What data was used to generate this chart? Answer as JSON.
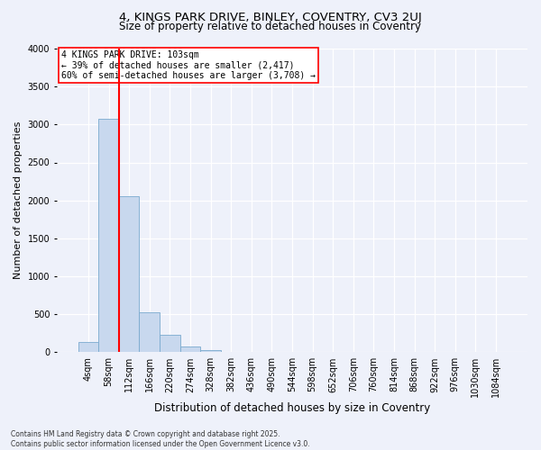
{
  "title_line1": "4, KINGS PARK DRIVE, BINLEY, COVENTRY, CV3 2UJ",
  "title_line2": "Size of property relative to detached houses in Coventry",
  "xlabel": "Distribution of detached houses by size in Coventry",
  "ylabel": "Number of detached properties",
  "bar_labels": [
    "4sqm",
    "58sqm",
    "112sqm",
    "166sqm",
    "220sqm",
    "274sqm",
    "328sqm",
    "382sqm",
    "436sqm",
    "490sqm",
    "544sqm",
    "598sqm",
    "652sqm",
    "706sqm",
    "760sqm",
    "814sqm",
    "868sqm",
    "922sqm",
    "976sqm",
    "1030sqm",
    "1084sqm"
  ],
  "bar_values": [
    130,
    3080,
    2060,
    530,
    230,
    80,
    30,
    5,
    0,
    0,
    0,
    0,
    0,
    0,
    0,
    0,
    0,
    0,
    0,
    0,
    0
  ],
  "bar_color": "#c8d8ee",
  "bar_edgecolor": "#7aaacf",
  "vline_color": "red",
  "vline_pos": 1.5,
  "ylim": [
    0,
    4000
  ],
  "yticks": [
    0,
    500,
    1000,
    1500,
    2000,
    2500,
    3000,
    3500,
    4000
  ],
  "annotation_title": "4 KINGS PARK DRIVE: 103sqm",
  "annotation_line2": "← 39% of detached houses are smaller (2,417)",
  "annotation_line3": "60% of semi-detached houses are larger (3,708) →",
  "annotation_box_color": "red",
  "footer_line1": "Contains HM Land Registry data © Crown copyright and database right 2025.",
  "footer_line2": "Contains public sector information licensed under the Open Government Licence v3.0.",
  "bg_color": "#eef1fa",
  "plot_bg_color": "#eef1fa",
  "grid_color": "#c8cedf",
  "title_fontsize": 9.5,
  "ylabel_fontsize": 8,
  "xlabel_fontsize": 8.5,
  "tick_fontsize": 7,
  "annot_fontsize": 7,
  "footer_fontsize": 5.5
}
